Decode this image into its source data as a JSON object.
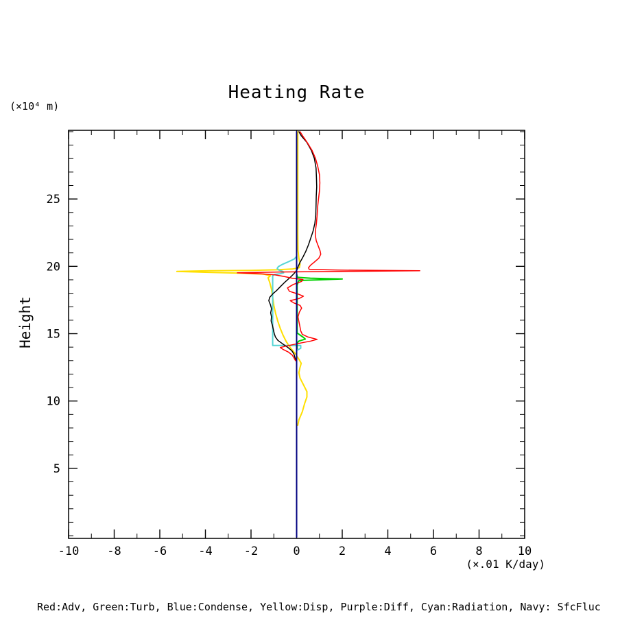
{
  "title": "Heating Rate",
  "y_unit_label": "(×10⁴ m)",
  "y_axis_label": "Height",
  "x_unit_label": "(×.01 K/day)",
  "caption": "Red:Adv, Green:Turb, Blue:Condense, Yellow:Disp, Purple:Diff, Cyan:Radiation, Navy: SfcFluc",
  "chart_data": {
    "type": "line",
    "title": "Heating Rate",
    "xlabel": "(×.01 K/day)",
    "ylabel": "Height (×10⁴ m)",
    "xlim": [
      -10,
      10
    ],
    "ylim": [
      -0.2,
      30.1
    ],
    "grid": false,
    "legend_position": "caption-below-plot",
    "x_major_ticks": [
      -10,
      -8,
      -6,
      -4,
      -2,
      0,
      2,
      4,
      6,
      8,
      10
    ],
    "x_tick_labels": [
      "-10",
      "-8",
      "-6",
      "-4",
      "-2",
      "0",
      "2",
      "4",
      "6",
      "8",
      "10"
    ],
    "x_minor_step": 1,
    "y_major_ticks": [
      5,
      10,
      15,
      20,
      25
    ],
    "y_tick_labels": [
      "5",
      "10",
      "15",
      "20",
      "25"
    ],
    "y_minor_step": 1,
    "series": [
      {
        "name": "Diff",
        "color": "#a020f0",
        "width": 1.5,
        "points": [
          [
            0,
            0
          ],
          [
            0,
            29.9
          ]
        ]
      },
      {
        "name": "Condense",
        "color": "#0000ff",
        "width": 1.5,
        "points": [
          [
            0,
            0
          ],
          [
            0,
            29.9
          ]
        ]
      },
      {
        "name": "Disp",
        "color": "#ffdf00",
        "width": 2,
        "points": [
          [
            0.05,
            8.2
          ],
          [
            0.1,
            8.6
          ],
          [
            0.25,
            9.2
          ],
          [
            0.35,
            9.8
          ],
          [
            0.45,
            10.3
          ],
          [
            0.45,
            10.7
          ],
          [
            0.3,
            11.2
          ],
          [
            0.15,
            11.7
          ],
          [
            0.1,
            12.1
          ],
          [
            0.15,
            12.5
          ],
          [
            0.2,
            12.8
          ],
          [
            0.1,
            13.1
          ],
          [
            -0.05,
            13.5
          ],
          [
            -0.25,
            13.9
          ],
          [
            -0.45,
            14.4
          ],
          [
            -0.6,
            14.9
          ],
          [
            -0.72,
            15.4
          ],
          [
            -0.82,
            15.9
          ],
          [
            -0.92,
            16.5
          ],
          [
            -1.0,
            17.1
          ],
          [
            -1.05,
            17.7
          ],
          [
            -1.1,
            18.3
          ],
          [
            -1.18,
            18.8
          ],
          [
            -1.25,
            19.15
          ],
          [
            -1.15,
            19.3
          ],
          [
            -1.45,
            19.42
          ],
          [
            -2.5,
            19.5
          ],
          [
            -4.0,
            19.56
          ],
          [
            -5.25,
            19.62
          ],
          [
            -3.8,
            19.67
          ],
          [
            -2.0,
            19.7
          ],
          [
            -0.9,
            19.74
          ],
          [
            -0.2,
            19.8
          ],
          [
            0.12,
            19.9
          ],
          [
            0.15,
            20.15
          ],
          [
            0.1,
            20.6
          ],
          [
            0.06,
            21.2
          ],
          [
            0.05,
            22.5
          ],
          [
            0.05,
            24.5
          ],
          [
            0.05,
            26.5
          ],
          [
            0.05,
            28.5
          ],
          [
            0.05,
            30.0
          ]
        ]
      },
      {
        "name": "Radiation",
        "color": "#55d5d5",
        "width": 2,
        "points": [
          [
            0,
            20.75
          ],
          [
            -0.1,
            20.55
          ],
          [
            -0.35,
            20.35
          ],
          [
            -0.62,
            20.15
          ],
          [
            -0.8,
            19.98
          ],
          [
            -0.85,
            19.85
          ],
          [
            -0.78,
            19.72
          ],
          [
            -0.6,
            19.62
          ],
          [
            -0.57,
            19.52
          ],
          [
            -0.72,
            19.45
          ],
          [
            -0.95,
            19.4
          ],
          [
            -1.05,
            19.32
          ],
          [
            -1.05,
            18.6
          ],
          [
            -1.05,
            17.8
          ],
          [
            -1.05,
            17.0
          ],
          [
            -1.05,
            16.2
          ],
          [
            -1.05,
            15.4
          ],
          [
            -1.05,
            14.7
          ],
          [
            -1.05,
            14.12
          ],
          [
            -0.7,
            14.12
          ],
          [
            -0.3,
            14.12
          ],
          [
            0.18,
            14.12
          ],
          [
            0.18,
            13.92
          ],
          [
            0.05,
            13.8
          ]
        ]
      },
      {
        "name": "Turb",
        "color": "#00d000",
        "width": 2,
        "points": [
          [
            0,
            19.45
          ],
          [
            0.04,
            19.18
          ],
          [
            0.6,
            19.12
          ],
          [
            1.3,
            19.09
          ],
          [
            2.0,
            19.06
          ],
          [
            1.0,
            19.0
          ],
          [
            0.1,
            18.95
          ],
          [
            0.02,
            18.6
          ],
          [
            0.02,
            15.05
          ],
          [
            0.3,
            14.72
          ],
          [
            0.38,
            14.6
          ],
          [
            0.1,
            14.45
          ],
          [
            0.02,
            14.3
          ],
          [
            0.02,
            13.9
          ]
        ]
      },
      {
        "name": "black-unlabeled",
        "color": "#000000",
        "width": 1.5,
        "points": [
          [
            0.1,
            30.0
          ],
          [
            0.2,
            29.7
          ],
          [
            0.45,
            29.2
          ],
          [
            0.65,
            28.6
          ],
          [
            0.78,
            28.0
          ],
          [
            0.85,
            27.3
          ],
          [
            0.87,
            26.6
          ],
          [
            0.88,
            25.9
          ],
          [
            0.86,
            25.2
          ],
          [
            0.85,
            24.5
          ],
          [
            0.84,
            23.8
          ],
          [
            0.8,
            23.2
          ],
          [
            0.72,
            22.6
          ],
          [
            0.62,
            22.1
          ],
          [
            0.52,
            21.6
          ],
          [
            0.4,
            21.1
          ],
          [
            0.28,
            20.7
          ],
          [
            0.15,
            20.3
          ],
          [
            0.07,
            20.0
          ],
          [
            0.02,
            19.75
          ],
          [
            -0.12,
            19.45
          ],
          [
            -0.3,
            19.15
          ],
          [
            -0.5,
            18.85
          ],
          [
            -0.68,
            18.55
          ],
          [
            -0.88,
            18.2
          ],
          [
            -1.05,
            17.95
          ],
          [
            -1.18,
            17.7
          ],
          [
            -1.22,
            17.45
          ],
          [
            -1.15,
            17.15
          ],
          [
            -1.1,
            16.85
          ],
          [
            -1.14,
            16.55
          ],
          [
            -1.1,
            16.25
          ],
          [
            -1.12,
            15.95
          ],
          [
            -1.06,
            15.6
          ],
          [
            -1.02,
            15.3
          ],
          [
            -0.98,
            15.0
          ],
          [
            -0.93,
            14.75
          ],
          [
            -0.82,
            14.5
          ],
          [
            -0.62,
            14.25
          ],
          [
            -0.4,
            14.0
          ],
          [
            -0.22,
            13.75
          ],
          [
            -0.12,
            13.5
          ],
          [
            -0.07,
            13.2
          ],
          [
            -0.03,
            13.0
          ]
        ]
      },
      {
        "name": "Adv",
        "color": "#ff0000",
        "width": 1.5,
        "points": [
          [
            0.15,
            30.0
          ],
          [
            0.28,
            29.65
          ],
          [
            0.48,
            29.15
          ],
          [
            0.68,
            28.6
          ],
          [
            0.83,
            28.0
          ],
          [
            0.93,
            27.4
          ],
          [
            1.0,
            26.8
          ],
          [
            1.02,
            26.2
          ],
          [
            1.0,
            25.6
          ],
          [
            0.96,
            25.0
          ],
          [
            0.92,
            24.4
          ],
          [
            0.9,
            23.8
          ],
          [
            0.87,
            23.2
          ],
          [
            0.83,
            22.7
          ],
          [
            0.82,
            22.3
          ],
          [
            0.86,
            21.9
          ],
          [
            0.95,
            21.5
          ],
          [
            1.03,
            21.15
          ],
          [
            1.06,
            20.9
          ],
          [
            0.97,
            20.6
          ],
          [
            0.8,
            20.35
          ],
          [
            0.62,
            20.1
          ],
          [
            0.52,
            19.9
          ],
          [
            0.55,
            19.78
          ],
          [
            1.8,
            19.72
          ],
          [
            5.4,
            19.67
          ],
          [
            2.5,
            19.63
          ],
          [
            -0.8,
            19.58
          ],
          [
            -2.6,
            19.52
          ],
          [
            -1.6,
            19.45
          ],
          [
            -0.95,
            19.37
          ],
          [
            -0.55,
            19.25
          ],
          [
            -0.2,
            19.12
          ],
          [
            0.28,
            19.02
          ],
          [
            0.22,
            18.88
          ],
          [
            -0.15,
            18.65
          ],
          [
            -0.4,
            18.4
          ],
          [
            -0.32,
            18.15
          ],
          [
            0.05,
            17.95
          ],
          [
            0.3,
            17.78
          ],
          [
            0.12,
            17.62
          ],
          [
            -0.28,
            17.45
          ],
          [
            -0.12,
            17.28
          ],
          [
            0.15,
            17.1
          ],
          [
            0.22,
            16.9
          ],
          [
            0.12,
            16.6
          ],
          [
            0.06,
            16.25
          ],
          [
            0.1,
            15.9
          ],
          [
            0.14,
            15.55
          ],
          [
            0.18,
            15.2
          ],
          [
            0.25,
            14.95
          ],
          [
            0.5,
            14.75
          ],
          [
            0.9,
            14.58
          ],
          [
            0.62,
            14.45
          ],
          [
            0.15,
            14.3
          ],
          [
            -0.35,
            14.12
          ],
          [
            -0.72,
            13.97
          ],
          [
            -0.58,
            13.82
          ],
          [
            -0.35,
            13.62
          ],
          [
            -0.2,
            13.42
          ],
          [
            -0.12,
            13.22
          ],
          [
            -0.05,
            13.0
          ]
        ]
      },
      {
        "name": "SfcFluc",
        "color": "#000080",
        "width": 2,
        "points": [
          [
            0,
            -0.1
          ],
          [
            0,
            30.0
          ]
        ]
      }
    ]
  }
}
